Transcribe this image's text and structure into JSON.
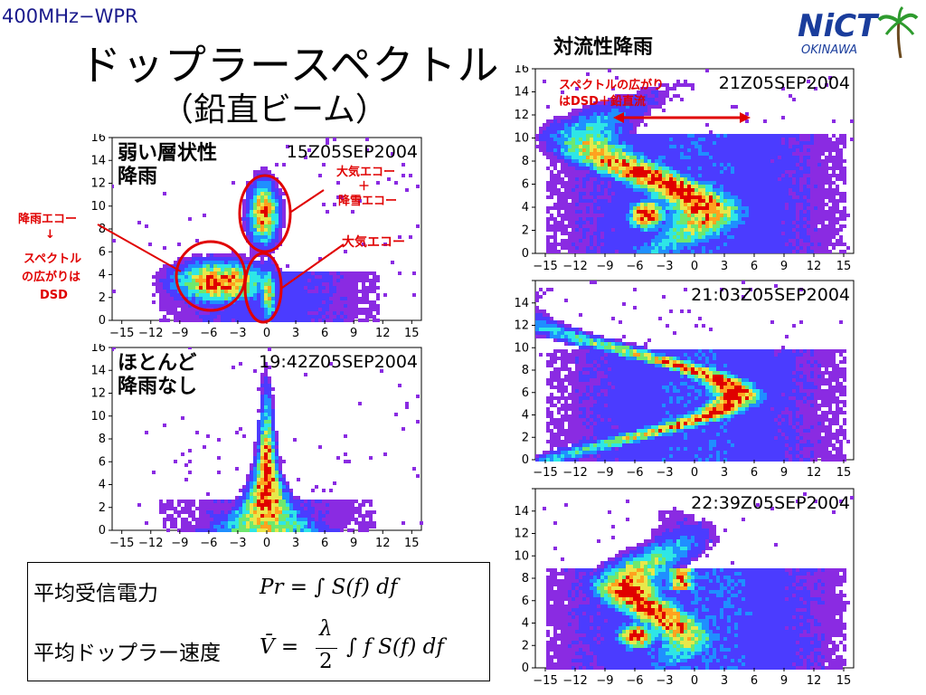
{
  "slide": {
    "top_label": "400MHz−WPR",
    "title_line1": "ドップラースペクトル",
    "title_line2": "（鉛直ビーム）",
    "right_heading": "対流性降雨"
  },
  "logo": {
    "main_text": "NiCT",
    "sub_text": "OKINAWA",
    "icon": "palm-tree-icon"
  },
  "x_ticks": [
    "−15",
    "−12",
    "−9",
    "−6",
    "−3",
    "0",
    "3",
    "6",
    "9",
    "12",
    "15"
  ],
  "y_ticks": [
    "0",
    "2",
    "4",
    "6",
    "8",
    "10",
    "12",
    "14",
    "16"
  ],
  "colors": {
    "annotation": "#e00000",
    "ellipse": "#e00000",
    "spectrum_low": "#8a2be2",
    "spectrum_high": "#e00000"
  },
  "panels": [
    {
      "id": "p1",
      "timestamp": "15Z05SEP2004",
      "label_lines": [
        "弱い層状性",
        "降雨"
      ],
      "cutoff_top": false
    },
    {
      "id": "p2",
      "timestamp": "19:42Z05SEP2004",
      "label_lines": [
        "ほとんど",
        "降雨なし"
      ],
      "cutoff_top": false
    },
    {
      "id": "p3",
      "timestamp": "21Z05SEP2004",
      "label_lines": [],
      "cutoff_top": false
    },
    {
      "id": "p4",
      "timestamp": "21:03Z05SEP2004",
      "label_lines": [],
      "cutoff_top": true
    },
    {
      "id": "p5",
      "timestamp": "22:39Z05SEP2004",
      "label_lines": [],
      "cutoff_top": true
    }
  ],
  "annotations": {
    "left": [
      "降雨エコー",
      "↓",
      "スペクトル",
      "の広がりは",
      "DSD"
    ],
    "upper": [
      "大気エコー",
      "＋",
      "降雪エコー"
    ],
    "atmos": "大気エコー",
    "spread": [
      "スペクトルの広がり",
      "はDSD＋鉛直流"
    ]
  },
  "formulas": {
    "power_label": "平均受信電力",
    "velocity_label": "平均ドップラー速度",
    "power_expr": "Pr = ∫ S(f) df",
    "velocity_lhs": "V̄ =",
    "velocity_frac_num": "λ",
    "velocity_frac_den": "2",
    "velocity_rhs": "∫ f  S(f) df"
  }
}
